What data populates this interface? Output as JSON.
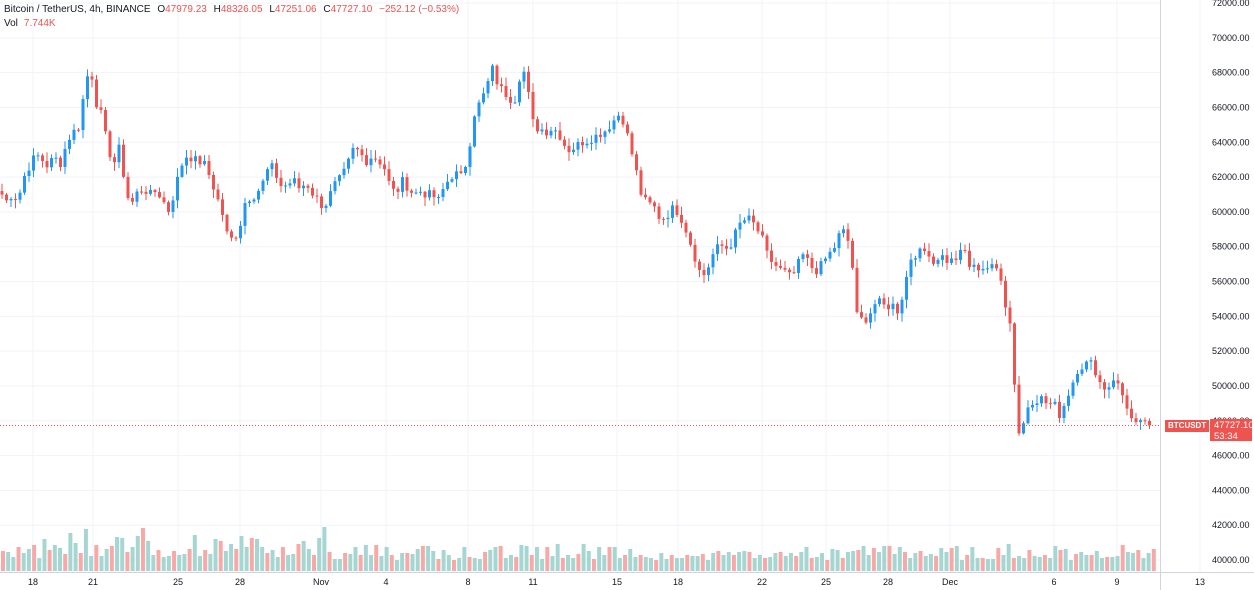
{
  "legend": {
    "symbol": "Bitcoin / TetherUS, 4h, BINANCE",
    "open_label": "O",
    "open": "47979.23",
    "high_label": "H",
    "high": "48326.05",
    "low_label": "L",
    "low": "47251.06",
    "close_label": "C",
    "close": "47727.10",
    "change": "−252.12 (−0.53%)",
    "vol_label": "Vol",
    "vol": "7.744K"
  },
  "price_tag": {
    "symbol": "BTCUSDT",
    "price": "47727.10",
    "countdown": "53:34"
  },
  "colors": {
    "up": "#26a69a",
    "up_candle": "#2196f3",
    "down": "#ef5350",
    "vol_up": "#a5d6d2",
    "vol_down": "#f7a9a7",
    "grid": "#f0f3fa",
    "axis_text": "#131722"
  },
  "chart_data": {
    "type": "candlestick",
    "y_axis": {
      "ticks": [
        "72000.00",
        "70000.00",
        "68000.00",
        "66000.00",
        "64000.00",
        "62000.00",
        "60000.00",
        "58000.00",
        "56000.00",
        "54000.00",
        "52000.00",
        "50000.00",
        "48000.00",
        "46000.00",
        "44000.00",
        "42000.00",
        "40000.00"
      ],
      "range": [
        39600,
        72200
      ],
      "last_price": 47727.1
    },
    "x_axis": {
      "ticks": [
        "18",
        "21",
        "25",
        "28",
        "Nov",
        "4",
        "8",
        "11",
        "15",
        "18",
        "22",
        "25",
        "28",
        "Dec",
        "6",
        "9",
        "13"
      ]
    },
    "close_anchors": [
      [
        0,
        61200
      ],
      [
        6,
        60600
      ],
      [
        12,
        61000
      ],
      [
        18,
        60700
      ],
      [
        24,
        62000
      ],
      [
        30,
        62700
      ],
      [
        36,
        63300
      ],
      [
        42,
        63000
      ],
      [
        48,
        62600
      ],
      [
        54,
        63200
      ],
      [
        60,
        62700
      ],
      [
        66,
        63800
      ],
      [
        72,
        64600
      ],
      [
        78,
        64700
      ],
      [
        84,
        66800
      ],
      [
        90,
        68500
      ],
      [
        96,
        66300
      ],
      [
        102,
        65500
      ],
      [
        108,
        63600
      ],
      [
        114,
        62800
      ],
      [
        120,
        63800
      ],
      [
        126,
        61000
      ],
      [
        132,
        60500
      ],
      [
        138,
        61200
      ],
      [
        144,
        61300
      ],
      [
        150,
        61000
      ],
      [
        156,
        61200
      ],
      [
        162,
        60800
      ],
      [
        168,
        60000
      ],
      [
        174,
        61000
      ],
      [
        180,
        62500
      ],
      [
        186,
        63200
      ],
      [
        192,
        63100
      ],
      [
        198,
        62900
      ],
      [
        204,
        62800
      ],
      [
        210,
        62000
      ],
      [
        216,
        61000
      ],
      [
        222,
        60000
      ],
      [
        228,
        58500
      ],
      [
        234,
        58400
      ],
      [
        240,
        59200
      ],
      [
        246,
        60800
      ],
      [
        252,
        60800
      ],
      [
        258,
        61200
      ],
      [
        264,
        61800
      ],
      [
        270,
        62800
      ],
      [
        276,
        62100
      ],
      [
        282,
        61400
      ],
      [
        288,
        61600
      ],
      [
        294,
        61800
      ],
      [
        300,
        61300
      ],
      [
        306,
        61700
      ],
      [
        312,
        61100
      ],
      [
        318,
        60700
      ],
      [
        324,
        60200
      ],
      [
        330,
        61000
      ],
      [
        336,
        61700
      ],
      [
        342,
        62000
      ],
      [
        348,
        62800
      ],
      [
        354,
        63700
      ],
      [
        360,
        63400
      ],
      [
        366,
        62900
      ],
      [
        372,
        63200
      ],
      [
        378,
        63000
      ],
      [
        384,
        62600
      ],
      [
        390,
        61500
      ],
      [
        396,
        61000
      ],
      [
        402,
        61800
      ],
      [
        408,
        61400
      ],
      [
        414,
        61000
      ],
      [
        420,
        61200
      ],
      [
        426,
        61000
      ],
      [
        432,
        61000
      ],
      [
        438,
        60600
      ],
      [
        444,
        61400
      ],
      [
        450,
        62000
      ],
      [
        456,
        62200
      ],
      [
        462,
        62000
      ],
      [
        468,
        63200
      ],
      [
        474,
        65600
      ],
      [
        480,
        66300
      ],
      [
        486,
        67000
      ],
      [
        492,
        68300
      ],
      [
        498,
        67300
      ],
      [
        504,
        66900
      ],
      [
        510,
        66500
      ],
      [
        516,
        66500
      ],
      [
        522,
        68600
      ],
      [
        528,
        66900
      ],
      [
        534,
        64800
      ],
      [
        540,
        64800
      ],
      [
        546,
        64600
      ],
      [
        552,
        64800
      ],
      [
        558,
        64600
      ],
      [
        564,
        63900
      ],
      [
        570,
        63500
      ],
      [
        576,
        63800
      ],
      [
        582,
        64000
      ],
      [
        588,
        64100
      ],
      [
        594,
        64300
      ],
      [
        600,
        64500
      ],
      [
        606,
        64700
      ],
      [
        612,
        65100
      ],
      [
        618,
        65600
      ],
      [
        624,
        65200
      ],
      [
        630,
        63800
      ],
      [
        636,
        62400
      ],
      [
        642,
        60800
      ],
      [
        648,
        60500
      ],
      [
        654,
        60300
      ],
      [
        660,
        59600
      ],
      [
        666,
        59700
      ],
      [
        672,
        60200
      ],
      [
        678,
        60000
      ],
      [
        684,
        59300
      ],
      [
        690,
        58300
      ],
      [
        696,
        57200
      ],
      [
        702,
        56200
      ],
      [
        708,
        56800
      ],
      [
        714,
        57700
      ],
      [
        720,
        58100
      ],
      [
        726,
        57900
      ],
      [
        732,
        58200
      ],
      [
        738,
        59200
      ],
      [
        744,
        59500
      ],
      [
        750,
        59600
      ],
      [
        756,
        59100
      ],
      [
        762,
        58500
      ],
      [
        768,
        57400
      ],
      [
        774,
        57000
      ],
      [
        780,
        56700
      ],
      [
        786,
        56500
      ],
      [
        792,
        56200
      ],
      [
        798,
        57000
      ],
      [
        804,
        57600
      ],
      [
        810,
        56900
      ],
      [
        816,
        56600
      ],
      [
        822,
        57000
      ],
      [
        828,
        57500
      ],
      [
        834,
        57900
      ],
      [
        840,
        58800
      ],
      [
        846,
        58900
      ],
      [
        852,
        57200
      ],
      [
        856,
        54100
      ],
      [
        862,
        53800
      ],
      [
        868,
        53900
      ],
      [
        874,
        54700
      ],
      [
        880,
        54800
      ],
      [
        886,
        54500
      ],
      [
        892,
        54700
      ],
      [
        898,
        54300
      ],
      [
        904,
        55500
      ],
      [
        910,
        57300
      ],
      [
        916,
        57600
      ],
      [
        922,
        57700
      ],
      [
        928,
        57800
      ],
      [
        934,
        57000
      ],
      [
        940,
        57600
      ],
      [
        946,
        57200
      ],
      [
        952,
        57200
      ],
      [
        958,
        57400
      ],
      [
        964,
        57900
      ],
      [
        970,
        56800
      ],
      [
        976,
        56800
      ],
      [
        982,
        56800
      ],
      [
        988,
        56800
      ],
      [
        994,
        56800
      ],
      [
        1000,
        56600
      ],
      [
        1006,
        54500
      ],
      [
        1010,
        53600
      ],
      [
        1013,
        51200
      ],
      [
        1016,
        49200
      ],
      [
        1018,
        47300
      ],
      [
        1022,
        47400
      ],
      [
        1026,
        48600
      ],
      [
        1030,
        49100
      ],
      [
        1036,
        49200
      ],
      [
        1042,
        49300
      ],
      [
        1048,
        48900
      ],
      [
        1054,
        49000
      ],
      [
        1060,
        48300
      ],
      [
        1066,
        49200
      ],
      [
        1072,
        50100
      ],
      [
        1078,
        51000
      ],
      [
        1084,
        51200
      ],
      [
        1090,
        51400
      ],
      [
        1096,
        50800
      ],
      [
        1102,
        49900
      ],
      [
        1108,
        49900
      ],
      [
        1114,
        50500
      ],
      [
        1120,
        49800
      ],
      [
        1126,
        49000
      ],
      [
        1132,
        48000
      ],
      [
        1138,
        47600
      ],
      [
        1144,
        48100
      ],
      [
        1150,
        47800
      ],
      [
        1153,
        47727.1
      ]
    ],
    "volume_heights": [
      20,
      19,
      14,
      24,
      18,
      22,
      26,
      13,
      32,
      21,
      26,
      23,
      17,
      38,
      28,
      18,
      42,
      15,
      26,
      15,
      22,
      25,
      34,
      33,
      19,
      24,
      35,
      43,
      30,
      16,
      21,
      14,
      15,
      20,
      16,
      17,
      22,
      36,
      15,
      21,
      17,
      32,
      30,
      20,
      27,
      22,
      35,
      24,
      33,
      32,
      24,
      18,
      21,
      14,
      24,
      16,
      17,
      27,
      30,
      22,
      16,
      33,
      44,
      19,
      12,
      12,
      18,
      17,
      24,
      16,
      26,
      16,
      26,
      15,
      24,
      16,
      11,
      18,
      18,
      17,
      22,
      25,
      25,
      20,
      12,
      21,
      16,
      11,
      13,
      24,
      14,
      13,
      12,
      19,
      21,
      24,
      25,
      13,
      16,
      14,
      26,
      25,
      16,
      24,
      12,
      24,
      15,
      27,
      13,
      16,
      13,
      17,
      27,
      20,
      12,
      24,
      16,
      24,
      24,
      13,
      16,
      22,
      14,
      16,
      14,
      13,
      11,
      18,
      12,
      16,
      13,
      13,
      16,
      15,
      15,
      17,
      11,
      18,
      20,
      16,
      19,
      16,
      19,
      20,
      19,
      13,
      16,
      13,
      14,
      18,
      19,
      15,
      18,
      15,
      19,
      24,
      13,
      14,
      18,
      11,
      22,
      21,
      13,
      19,
      20,
      21,
      25,
      16,
      23,
      19,
      25,
      25,
      17,
      24,
      19,
      13,
      18,
      20,
      15,
      17,
      15,
      23,
      19,
      23,
      25,
      11,
      16,
      24,
      13,
      13,
      12,
      12,
      23,
      16,
      27,
      13,
      15,
      13,
      21,
      15,
      14,
      16,
      13,
      25,
      21,
      22,
      11,
      17,
      19,
      16,
      16,
      20,
      13,
      14,
      14,
      15,
      26,
      19,
      18,
      21,
      13,
      18,
      22
    ]
  }
}
